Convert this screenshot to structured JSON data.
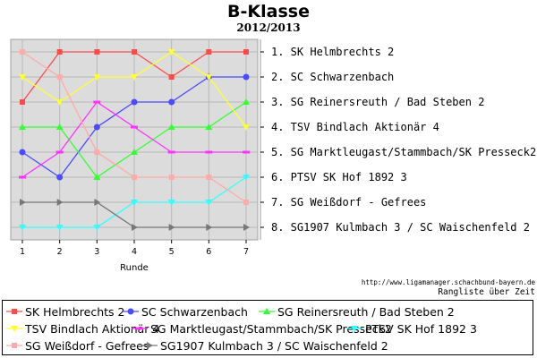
{
  "chart_data": {
    "type": "line",
    "title": "B-Klasse",
    "subtitle": "2012/2013",
    "xlabel": "Runde",
    "x": [
      1,
      2,
      3,
      4,
      5,
      6,
      7
    ],
    "x_tick_labels": [
      "1",
      "2",
      "3",
      "4",
      "5",
      "6",
      "7"
    ],
    "y_inverted": true,
    "ylim": [
      1,
      8
    ],
    "y_tick_labels": [
      "1.  SK Helmbrechts 2",
      "2.  SC Schwarzenbach",
      "3.  SG Reinersreuth / Bad Steben 2",
      "4.  TSV Bindlach Aktionär 4",
      "5.  SG Marktleugast/Stammbach/SK Presseck2",
      "6.  PTSV SK Hof 1892 3",
      "7.  SG Weißdorf - Gefrees",
      "8.  SG1907 Kulmbach 3 / SC Waischenfeld 2"
    ],
    "grid": true,
    "legend_position": "bottom",
    "series": [
      {
        "name": "SK Helmbrechts 2",
        "color": "#ff4a4a",
        "marker": "square",
        "values": [
          3,
          1,
          1,
          1,
          2,
          1,
          1
        ]
      },
      {
        "name": "SC Schwarzenbach",
        "color": "#4a4aff",
        "marker": "circle",
        "values": [
          5,
          6,
          4,
          3,
          3,
          2,
          2
        ]
      },
      {
        "name": "SG Reinersreuth / Bad Steben 2",
        "color": "#33ff33",
        "marker": "triangle-up",
        "values": [
          4,
          4,
          6,
          5,
          4,
          4,
          3
        ]
      },
      {
        "name": "TSV Bindlach Aktionär 4",
        "color": "#ffff33",
        "marker": "triangle-down",
        "values": [
          2,
          3,
          2,
          2,
          1,
          2,
          4
        ]
      },
      {
        "name": "SG Marktleugast/Stammbach/SK Presseck2",
        "color": "#ff33ff",
        "marker": "dash",
        "values": [
          6,
          5,
          3,
          4,
          5,
          5,
          5
        ]
      },
      {
        "name": "PTSV SK Hof 1892 3",
        "color": "#33ffff",
        "marker": "triangle-down",
        "values": [
          8,
          8,
          8,
          7,
          7,
          7,
          6
        ]
      },
      {
        "name": "SG Weißdorf - Gefrees",
        "color": "#ffaaaa",
        "marker": "square",
        "values": [
          1,
          2,
          5,
          6,
          6,
          6,
          7
        ]
      },
      {
        "name": "SG1907 Kulmbach 3 / SC Waischenfeld 2",
        "color": "#777777",
        "marker": "triangle-right",
        "values": [
          7,
          7,
          7,
          8,
          8,
          8,
          8
        ]
      }
    ]
  },
  "source_url": "http://www.ligamanager.schachbund-bayern.de",
  "footer_label": "Rangliste über Zeit"
}
